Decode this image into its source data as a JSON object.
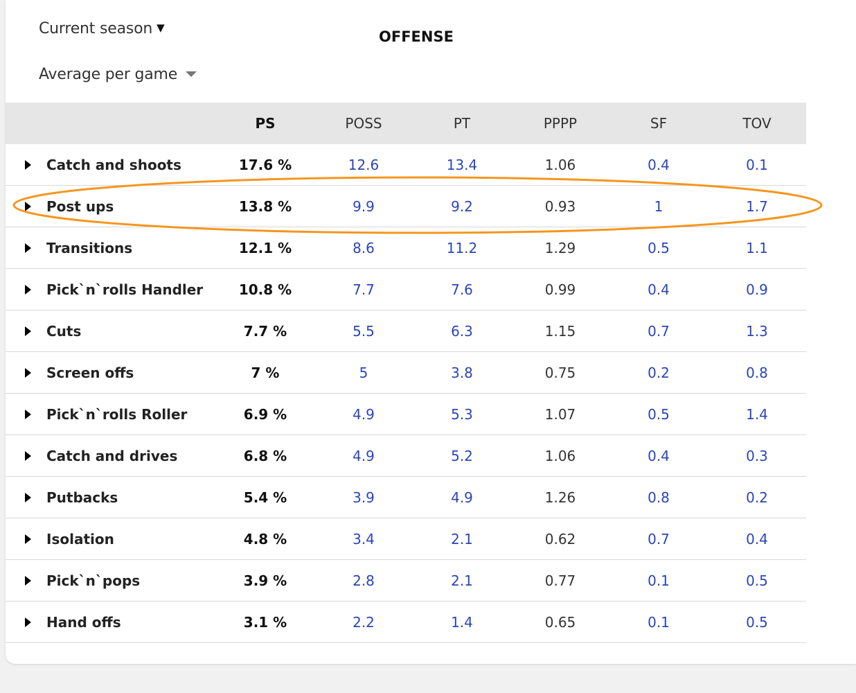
{
  "filters": {
    "season_label": "Current season",
    "average_label": "Average per game"
  },
  "section_title": "OFFENSE",
  "table": {
    "columns": [
      "PS",
      "POSS",
      "PT",
      "PPPP",
      "SF",
      "TOV"
    ],
    "rows": [
      {
        "name": "Catch and shoots",
        "ps": "17.6 %",
        "poss": "12.6",
        "pt": "13.4",
        "pppp": "1.06",
        "sf": "0.4",
        "tov": "0.1"
      },
      {
        "name": "Post ups",
        "ps": "13.8 %",
        "poss": "9.9",
        "pt": "9.2",
        "pppp": "0.93",
        "sf": "1",
        "tov": "1.7"
      },
      {
        "name": "Transitions",
        "ps": "12.1 %",
        "poss": "8.6",
        "pt": "11.2",
        "pppp": "1.29",
        "sf": "0.5",
        "tov": "1.1"
      },
      {
        "name": "Pick`n`rolls Handler",
        "ps": "10.8 %",
        "poss": "7.7",
        "pt": "7.6",
        "pppp": "0.99",
        "sf": "0.4",
        "tov": "0.9"
      },
      {
        "name": "Cuts",
        "ps": "7.7 %",
        "poss": "5.5",
        "pt": "6.3",
        "pppp": "1.15",
        "sf": "0.7",
        "tov": "1.3"
      },
      {
        "name": "Screen offs",
        "ps": "7 %",
        "poss": "5",
        "pt": "3.8",
        "pppp": "0.75",
        "sf": "0.2",
        "tov": "0.8"
      },
      {
        "name": "Pick`n`rolls Roller",
        "ps": "6.9 %",
        "poss": "4.9",
        "pt": "5.3",
        "pppp": "1.07",
        "sf": "0.5",
        "tov": "1.4"
      },
      {
        "name": "Catch and drives",
        "ps": "6.8 %",
        "poss": "4.9",
        "pt": "5.2",
        "pppp": "1.06",
        "sf": "0.4",
        "tov": "0.3"
      },
      {
        "name": "Putbacks",
        "ps": "5.4 %",
        "poss": "3.9",
        "pt": "4.9",
        "pppp": "1.26",
        "sf": "0.8",
        "tov": "0.2"
      },
      {
        "name": "Isolation",
        "ps": "4.8 %",
        "poss": "3.4",
        "pt": "2.1",
        "pppp": "0.62",
        "sf": "0.7",
        "tov": "0.4"
      },
      {
        "name": "Pick`n`pops",
        "ps": "3.9 %",
        "poss": "2.8",
        "pt": "2.1",
        "pppp": "0.77",
        "sf": "0.1",
        "tov": "0.5"
      },
      {
        "name": "Hand offs",
        "ps": "3.1 %",
        "poss": "2.2",
        "pt": "1.4",
        "pppp": "0.65",
        "sf": "0.1",
        "tov": "0.5"
      }
    ]
  },
  "colors": {
    "link": "#2b45b8",
    "highlight": "#f5961e",
    "header_bg": "#e6e6e6"
  }
}
